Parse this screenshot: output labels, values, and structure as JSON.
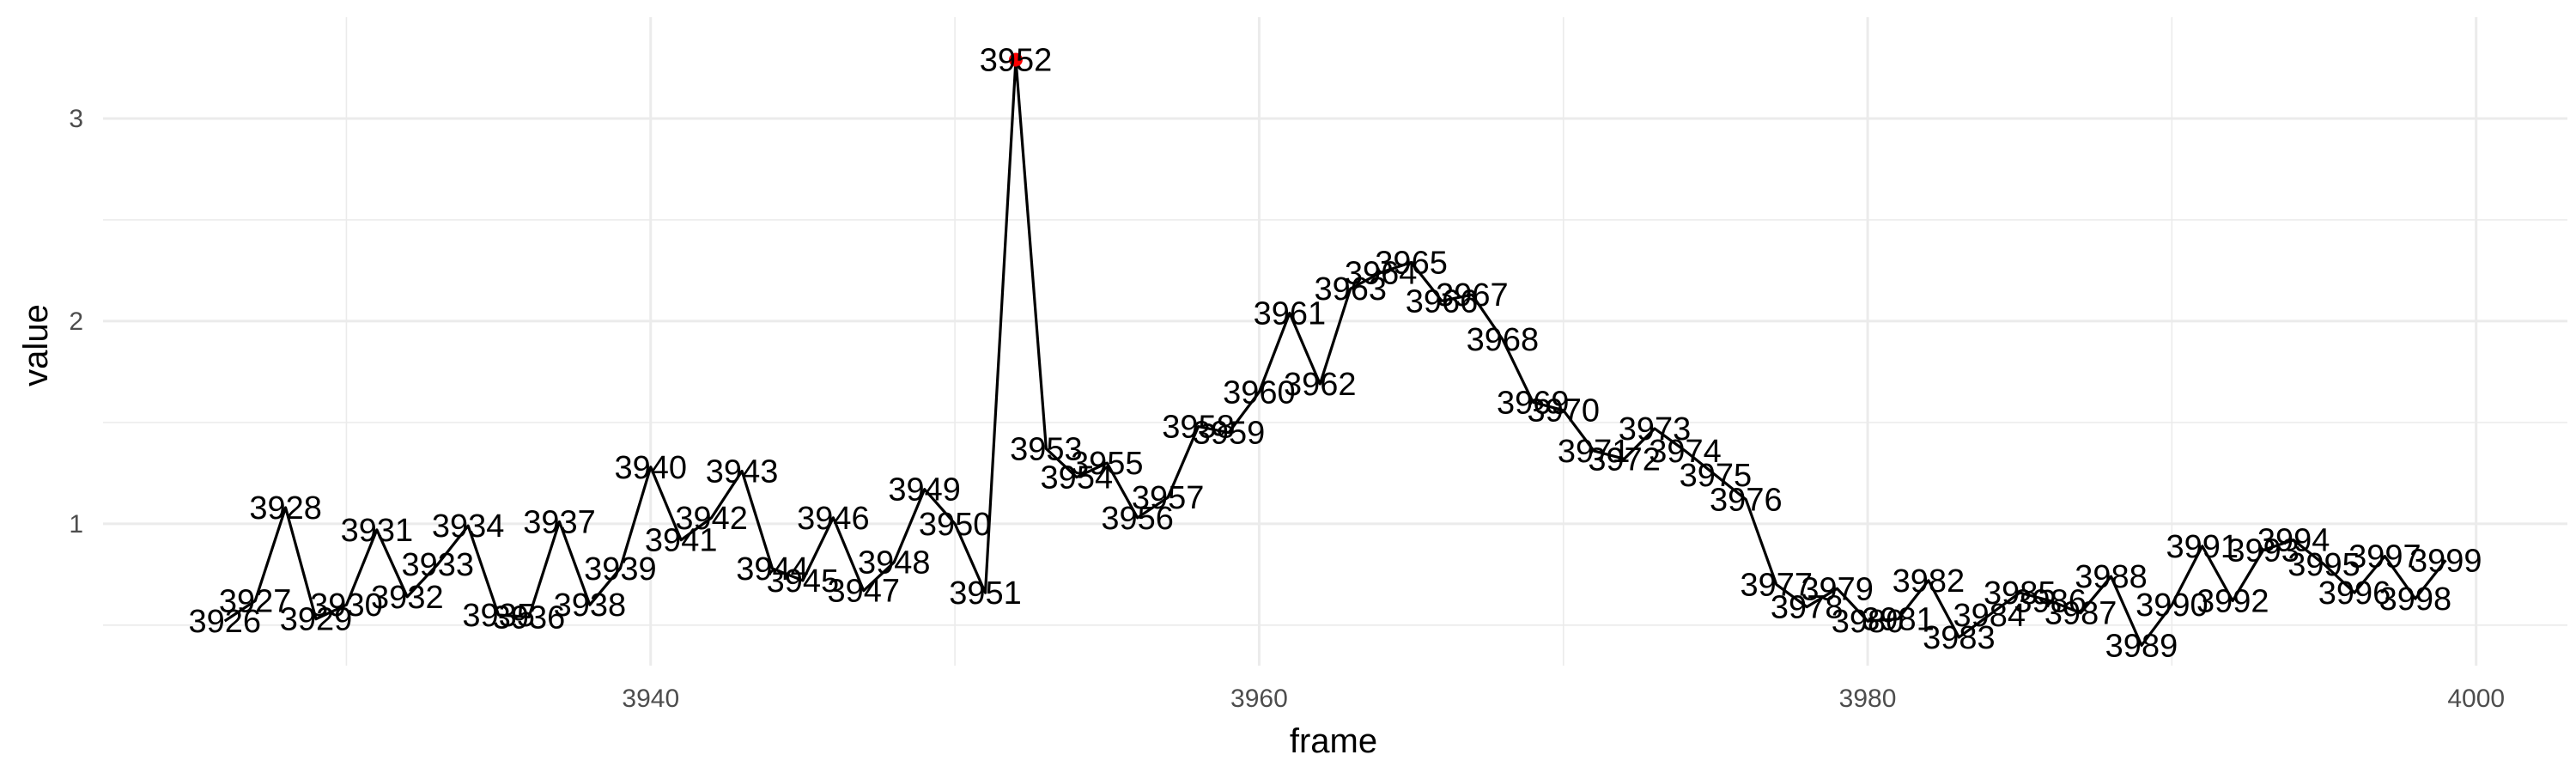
{
  "chart_data": {
    "type": "line",
    "xlabel": "frame",
    "ylabel": "value",
    "xlim": [
      3922,
      4003
    ],
    "ylim": [
      0.3,
      3.5
    ],
    "x_ticks": [
      3930,
      3940,
      3950,
      3960,
      3970,
      3980,
      3990,
      4000
    ],
    "x_tick_labels": [
      "3940",
      "3960",
      "3980",
      "4000"
    ],
    "x_tick_label_values": [
      3940,
      3960,
      3980,
      4000
    ],
    "y_ticks": [
      0.5,
      1,
      1.5,
      2,
      2.5,
      3
    ],
    "y_tick_labels": [
      "1",
      "2",
      "3"
    ],
    "y_tick_label_values": [
      1,
      2,
      3
    ],
    "grid": true,
    "line_color": "#000000",
    "highlight_color": "#ff0000",
    "highlight_frame": 3952,
    "points": [
      {
        "frame": 3926,
        "value": 0.52,
        "label": "3926"
      },
      {
        "frame": 3927,
        "value": 0.62,
        "label": "3927"
      },
      {
        "frame": 3928,
        "value": 1.08,
        "label": "3928"
      },
      {
        "frame": 3929,
        "value": 0.53,
        "label": "3929"
      },
      {
        "frame": 3930,
        "value": 0.6,
        "label": "3930"
      },
      {
        "frame": 3931,
        "value": 0.97,
        "label": "3931"
      },
      {
        "frame": 3932,
        "value": 0.64,
        "label": "3932"
      },
      {
        "frame": 3933,
        "value": 0.8,
        "label": "3933"
      },
      {
        "frame": 3934,
        "value": 0.99,
        "label": "3934"
      },
      {
        "frame": 3935,
        "value": 0.55,
        "label": "3935"
      },
      {
        "frame": 3936,
        "value": 0.54,
        "label": "3936"
      },
      {
        "frame": 3937,
        "value": 1.01,
        "label": "3937"
      },
      {
        "frame": 3938,
        "value": 0.6,
        "label": "3938"
      },
      {
        "frame": 3939,
        "value": 0.78,
        "label": "3939"
      },
      {
        "frame": 3940,
        "value": 1.28,
        "label": "3940"
      },
      {
        "frame": 3941,
        "value": 0.92,
        "label": "3941"
      },
      {
        "frame": 3942,
        "value": 1.03,
        "label": "3942"
      },
      {
        "frame": 3943,
        "value": 1.26,
        "label": "3943"
      },
      {
        "frame": 3944,
        "value": 0.78,
        "label": "3944"
      },
      {
        "frame": 3945,
        "value": 0.72,
        "label": "3945"
      },
      {
        "frame": 3946,
        "value": 1.03,
        "label": "3946"
      },
      {
        "frame": 3947,
        "value": 0.67,
        "label": "3947"
      },
      {
        "frame": 3948,
        "value": 0.81,
        "label": "3948"
      },
      {
        "frame": 3949,
        "value": 1.17,
        "label": "3949"
      },
      {
        "frame": 3950,
        "value": 1.0,
        "label": "3950"
      },
      {
        "frame": 3951,
        "value": 0.66,
        "label": "3951"
      },
      {
        "frame": 3952,
        "value": 3.29,
        "label": "3952"
      },
      {
        "frame": 3953,
        "value": 1.37,
        "label": "3953"
      },
      {
        "frame": 3954,
        "value": 1.23,
        "label": "3954"
      },
      {
        "frame": 3955,
        "value": 1.3,
        "label": "3955"
      },
      {
        "frame": 3956,
        "value": 1.03,
        "label": "3956"
      },
      {
        "frame": 3957,
        "value": 1.13,
        "label": "3957"
      },
      {
        "frame": 3958,
        "value": 1.48,
        "label": "3958"
      },
      {
        "frame": 3959,
        "value": 1.45,
        "label": "3959"
      },
      {
        "frame": 3960,
        "value": 1.65,
        "label": "3960"
      },
      {
        "frame": 3961,
        "value": 2.04,
        "label": "3961"
      },
      {
        "frame": 3962,
        "value": 1.69,
        "label": "3962"
      },
      {
        "frame": 3963,
        "value": 2.16,
        "label": "3963"
      },
      {
        "frame": 3964,
        "value": 2.24,
        "label": "3964"
      },
      {
        "frame": 3965,
        "value": 2.29,
        "label": "3965"
      },
      {
        "frame": 3966,
        "value": 2.1,
        "label": "3966"
      },
      {
        "frame": 3967,
        "value": 2.13,
        "label": "3967"
      },
      {
        "frame": 3968,
        "value": 1.91,
        "label": "3968"
      },
      {
        "frame": 3969,
        "value": 1.6,
        "label": "3969"
      },
      {
        "frame": 3970,
        "value": 1.56,
        "label": "3970"
      },
      {
        "frame": 3971,
        "value": 1.36,
        "label": "3971"
      },
      {
        "frame": 3972,
        "value": 1.32,
        "label": "3972"
      },
      {
        "frame": 3973,
        "value": 1.47,
        "label": "3973"
      },
      {
        "frame": 3974,
        "value": 1.36,
        "label": "3974"
      },
      {
        "frame": 3975,
        "value": 1.24,
        "label": "3975"
      },
      {
        "frame": 3976,
        "value": 1.12,
        "label": "3976"
      },
      {
        "frame": 3977,
        "value": 0.7,
        "label": "3977"
      },
      {
        "frame": 3978,
        "value": 0.59,
        "label": "3978"
      },
      {
        "frame": 3979,
        "value": 0.68,
        "label": "3979"
      },
      {
        "frame": 3980,
        "value": 0.52,
        "label": "3980"
      },
      {
        "frame": 3981,
        "value": 0.53,
        "label": "3981"
      },
      {
        "frame": 3982,
        "value": 0.72,
        "label": "3982"
      },
      {
        "frame": 3983,
        "value": 0.44,
        "label": "3983"
      },
      {
        "frame": 3984,
        "value": 0.55,
        "label": "3984"
      },
      {
        "frame": 3985,
        "value": 0.66,
        "label": "3985"
      },
      {
        "frame": 3986,
        "value": 0.62,
        "label": "3986"
      },
      {
        "frame": 3987,
        "value": 0.56,
        "label": "3987"
      },
      {
        "frame": 3988,
        "value": 0.74,
        "label": "3988"
      },
      {
        "frame": 3989,
        "value": 0.4,
        "label": "3989"
      },
      {
        "frame": 3990,
        "value": 0.6,
        "label": "3990"
      },
      {
        "frame": 3991,
        "value": 0.89,
        "label": "3991"
      },
      {
        "frame": 3992,
        "value": 0.62,
        "label": "3992"
      },
      {
        "frame": 3993,
        "value": 0.87,
        "label": "3993"
      },
      {
        "frame": 3994,
        "value": 0.92,
        "label": "3994"
      },
      {
        "frame": 3995,
        "value": 0.8,
        "label": "3995"
      },
      {
        "frame": 3996,
        "value": 0.66,
        "label": "3996"
      },
      {
        "frame": 3997,
        "value": 0.84,
        "label": "3997"
      },
      {
        "frame": 3998,
        "value": 0.63,
        "label": "3998"
      },
      {
        "frame": 3999,
        "value": 0.82,
        "label": "3999"
      }
    ]
  }
}
